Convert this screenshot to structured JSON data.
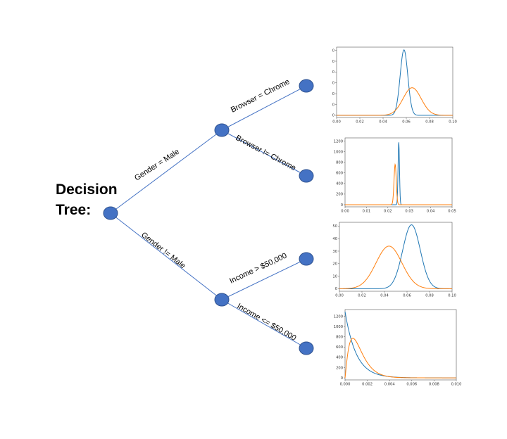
{
  "title": {
    "line1": "Decision",
    "line2": "Tree:"
  },
  "edges": {
    "gender_male": "Gender = Male",
    "gender_not_male": "Gender != Male",
    "browser_chrome": "Browser = Chrome",
    "browser_not_chrome": "Browser != Chrome",
    "income_high": "Income > $50,000",
    "income_low": "Income <= $50,000"
  },
  "colors": {
    "node": "#4472c4",
    "node_stroke": "#2f528f",
    "edge": "#4472c4",
    "blue": "#1f77b4",
    "orange": "#ff7f0e"
  },
  "chart_data": [
    {
      "type": "line",
      "xlim": [
        0,
        0.1
      ],
      "ylim": [
        -4,
        126
      ],
      "xticks": [
        "0.00",
        "0.02",
        "0.04",
        "0.06",
        "0.08",
        "0.10"
      ],
      "yticks": [
        "0",
        "20",
        "40",
        "60",
        "80",
        "100",
        "120"
      ],
      "series": [
        {
          "color": "blue",
          "dist": "gauss",
          "mean": 0.058,
          "sd": 0.0033,
          "peak": 121
        },
        {
          "color": "orange",
          "dist": "gauss",
          "mean": 0.065,
          "sd": 0.0078,
          "peak": 51
        }
      ]
    },
    {
      "type": "line",
      "xlim": [
        0,
        0.05
      ],
      "ylim": [
        -40,
        1260
      ],
      "xticks": [
        "0.00",
        "0.01",
        "0.02",
        "0.03",
        "0.04",
        "0.05"
      ],
      "yticks": [
        "0",
        "200",
        "400",
        "600",
        "800",
        "1000",
        "1200"
      ],
      "series": [
        {
          "color": "blue",
          "dist": "gauss",
          "mean": 0.0251,
          "sd": 0.00033,
          "peak": 1180
        },
        {
          "color": "orange",
          "dist": "gauss",
          "mean": 0.0234,
          "sd": 0.00052,
          "peak": 760
        }
      ]
    },
    {
      "type": "line",
      "xlim": [
        0,
        0.1
      ],
      "ylim": [
        -2,
        53
      ],
      "xticks": [
        "0.00",
        "0.02",
        "0.04",
        "0.06",
        "0.08",
        "0.10"
      ],
      "yticks": [
        "0",
        "10",
        "20",
        "30",
        "40",
        "50"
      ],
      "series": [
        {
          "color": "blue",
          "dist": "gauss",
          "mean": 0.064,
          "sd": 0.0078,
          "peak": 51
        },
        {
          "color": "orange",
          "dist": "gauss",
          "mean": 0.044,
          "sd": 0.0115,
          "peak": 34
        }
      ]
    },
    {
      "type": "line",
      "xlim": [
        0,
        0.01
      ],
      "ylim": [
        -40,
        1330
      ],
      "xticks": [
        "0.000",
        "0.002",
        "0.004",
        "0.006",
        "0.008",
        "0.010"
      ],
      "yticks": [
        "0",
        "200",
        "400",
        "600",
        "800",
        "1000",
        "1200"
      ],
      "series": [
        {
          "color": "blue",
          "dist": "expo",
          "start": 1290,
          "rate": 1000
        },
        {
          "color": "orange",
          "dist": "gamma",
          "shape": 2.2,
          "rate": 1700,
          "peak": 770
        }
      ]
    }
  ]
}
